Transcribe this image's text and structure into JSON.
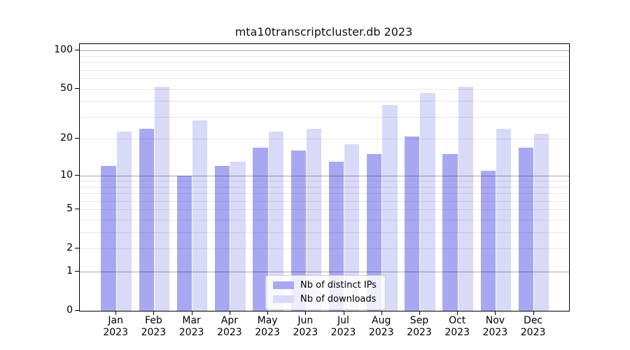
{
  "chart_data": {
    "type": "bar",
    "title": "mta10transcriptcluster.db 2023",
    "categories": [
      "Jan 2023",
      "Feb 2023",
      "Mar 2023",
      "Apr 2023",
      "May 2023",
      "Jun 2023",
      "Jul 2023",
      "Aug 2023",
      "Sep 2023",
      "Oct 2023",
      "Nov 2023",
      "Dec 2023"
    ],
    "series": [
      {
        "name": "Nb of distinct IPs",
        "color": "#a8a8f2",
        "values": [
          12,
          24,
          10,
          12,
          17,
          16,
          13,
          15,
          21,
          15,
          11,
          17
        ]
      },
      {
        "name": "Nb of downloads",
        "color": "#d9d9f8",
        "values": [
          23,
          52,
          28,
          13,
          23,
          24,
          18,
          37,
          46,
          52,
          24,
          22
        ]
      }
    ],
    "xlabel": "",
    "ylabel": "",
    "yscale": "log1p",
    "ylim": [
      0,
      110
    ],
    "yticks": [
      0,
      1,
      2,
      5,
      10,
      20,
      50,
      100
    ],
    "y_major_gridlines": [
      1,
      10,
      100
    ],
    "y_minor_gridlines": [
      2,
      3,
      4,
      5,
      6,
      7,
      8,
      9,
      20,
      30,
      40,
      50,
      60,
      70,
      80,
      90
    ],
    "grid": true,
    "legend_position": "lower center"
  }
}
